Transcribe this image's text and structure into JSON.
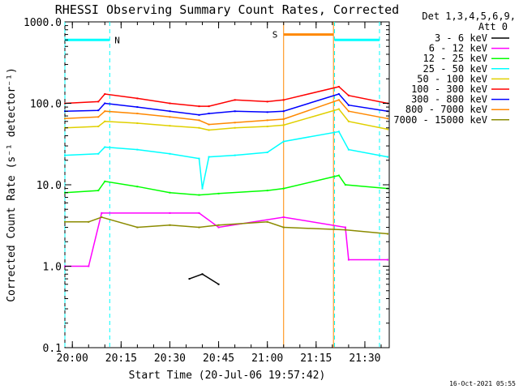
{
  "chart_data": {
    "type": "line",
    "title": "RHESSI Observing Summary Count Rates, Corrected",
    "xlabel": "Start Time (20-Jul-06 19:57:42)",
    "ylabel": "Corrected Count Rate (s⁻¹ detector⁻¹)",
    "yscale": "log",
    "ylim": [
      0.1,
      1000.0
    ],
    "xlim": [
      "19:57:42",
      "21:37:30"
    ],
    "x_ticks": [
      "20:00",
      "20:15",
      "20:30",
      "20:45",
      "21:00",
      "21:15",
      "21:30"
    ],
    "y_ticks": [
      "0.1",
      "1.0",
      "10.0",
      "100.0",
      "1000.0"
    ],
    "grid": false,
    "legend_position": "top-right",
    "legend_header": [
      "Det 1,3,4,5,6,9,",
      "Att 0"
    ],
    "series": [
      {
        "name": "3 - 6 keV",
        "color": "#000000",
        "points": [
          [
            "20:36",
            0.7
          ],
          [
            "20:40",
            0.8
          ],
          [
            "20:45",
            0.6
          ]
        ]
      },
      {
        "name": "6 - 12 keV",
        "color": "#ff00ff",
        "points": [
          [
            "19:57:42",
            1.0
          ],
          [
            "20:05",
            1.0
          ],
          [
            "20:09",
            4.5
          ],
          [
            "20:30",
            4.5
          ],
          [
            "20:39",
            4.5
          ],
          [
            "20:45",
            3.0
          ],
          [
            "21:05",
            4.0
          ],
          [
            "21:24",
            3.0
          ],
          [
            "21:25",
            1.2
          ],
          [
            "21:37",
            1.2
          ]
        ]
      },
      {
        "name": "12 - 25 keV",
        "color": "#00ff00",
        "points": [
          [
            "19:57:42",
            8.0
          ],
          [
            "20:08",
            8.5
          ],
          [
            "20:10",
            11.0
          ],
          [
            "20:20",
            9.5
          ],
          [
            "20:30",
            8.0
          ],
          [
            "20:39",
            7.5
          ],
          [
            "20:45",
            7.8
          ],
          [
            "21:00",
            8.5
          ],
          [
            "21:05",
            9.0
          ],
          [
            "21:22",
            13.0
          ],
          [
            "21:24",
            10.0
          ],
          [
            "21:37",
            9.0
          ]
        ]
      },
      {
        "name": "25 - 50 keV",
        "color": "#00ffff",
        "points": [
          [
            "19:57:42",
            23.0
          ],
          [
            "20:08",
            24.0
          ],
          [
            "20:10",
            29.0
          ],
          [
            "20:20",
            27.0
          ],
          [
            "20:30",
            24.0
          ],
          [
            "20:39",
            21.0
          ],
          [
            "20:40",
            9.0
          ],
          [
            "20:42",
            22.0
          ],
          [
            "20:50",
            23.0
          ],
          [
            "21:00",
            25.0
          ],
          [
            "21:05",
            34.0
          ],
          [
            "21:22",
            45.0
          ],
          [
            "21:25",
            27.0
          ],
          [
            "21:37",
            22.0
          ]
        ]
      },
      {
        "name": "50 - 100 keV",
        "color": "#e0d000",
        "points": [
          [
            "19:57:42",
            50.0
          ],
          [
            "20:08",
            52.0
          ],
          [
            "20:10",
            60.0
          ],
          [
            "20:20",
            57.0
          ],
          [
            "20:30",
            53.0
          ],
          [
            "20:39",
            50.0
          ],
          [
            "20:42",
            47.0
          ],
          [
            "20:50",
            50.0
          ],
          [
            "21:00",
            52.0
          ],
          [
            "21:05",
            54.0
          ],
          [
            "21:22",
            85.0
          ],
          [
            "21:25",
            60.0
          ],
          [
            "21:37",
            48.0
          ]
        ]
      },
      {
        "name": "100 - 300 keV",
        "color": "#ff0000",
        "points": [
          [
            "19:57:42",
            100.0
          ],
          [
            "20:08",
            105.0
          ],
          [
            "20:10",
            130.0
          ],
          [
            "20:20",
            115.0
          ],
          [
            "20:30",
            100.0
          ],
          [
            "20:39",
            92.0
          ],
          [
            "20:42",
            92.0
          ],
          [
            "20:50",
            110.0
          ],
          [
            "21:00",
            105.0
          ],
          [
            "21:05",
            110.0
          ],
          [
            "21:22",
            160.0
          ],
          [
            "21:25",
            125.0
          ],
          [
            "21:37",
            100.0
          ]
        ]
      },
      {
        "name": "300 - 800 keV",
        "color": "#0000ff",
        "points": [
          [
            "19:57:42",
            80.0
          ],
          [
            "20:08",
            82.0
          ],
          [
            "20:10",
            100.0
          ],
          [
            "20:20",
            90.0
          ],
          [
            "20:30",
            80.0
          ],
          [
            "20:39",
            72.0
          ],
          [
            "20:42",
            75.0
          ],
          [
            "20:50",
            80.0
          ],
          [
            "21:00",
            78.0
          ],
          [
            "21:05",
            80.0
          ],
          [
            "21:22",
            130.0
          ],
          [
            "21:25",
            95.0
          ],
          [
            "21:37",
            80.0
          ]
        ]
      },
      {
        "name": "800 - 7000 keV",
        "color": "#ff8800",
        "points": [
          [
            "19:57:42",
            65.0
          ],
          [
            "20:08",
            68.0
          ],
          [
            "20:10",
            80.0
          ],
          [
            "20:20",
            75.0
          ],
          [
            "20:30",
            68.0
          ],
          [
            "20:39",
            62.0
          ],
          [
            "20:42",
            55.0
          ],
          [
            "20:50",
            58.0
          ],
          [
            "21:00",
            62.0
          ],
          [
            "21:05",
            64.0
          ],
          [
            "21:22",
            110.0
          ],
          [
            "21:25",
            80.0
          ],
          [
            "21:37",
            65.0
          ]
        ]
      },
      {
        "name": "7000 - 15000 keV",
        "color": "#8b8b00",
        "points": [
          [
            "19:57:42",
            3.5
          ],
          [
            "20:05",
            3.5
          ],
          [
            "20:09",
            4.0
          ],
          [
            "20:20",
            3.0
          ],
          [
            "20:30",
            3.2
          ],
          [
            "20:39",
            3.0
          ],
          [
            "20:45",
            3.2
          ],
          [
            "21:00",
            3.5
          ],
          [
            "21:05",
            3.0
          ],
          [
            "21:24",
            2.8
          ],
          [
            "21:37",
            2.5
          ]
        ]
      }
    ],
    "annotations": [
      {
        "label": "N",
        "kind": "night",
        "color": "#00ffff",
        "start": "19:57:42",
        "end": "20:11:30",
        "level": 600.0
      },
      {
        "label": "",
        "kind": "night",
        "color": "#00ffff",
        "start": "21:20:40",
        "end": "21:34:30",
        "level": 600.0
      },
      {
        "label": "S",
        "kind": "saa",
        "color": "#ff8800",
        "start": "21:05:00",
        "end": "21:20:20",
        "level": 700.0
      }
    ]
  },
  "footer_timestamp": "16-Oct-2021 05:55"
}
